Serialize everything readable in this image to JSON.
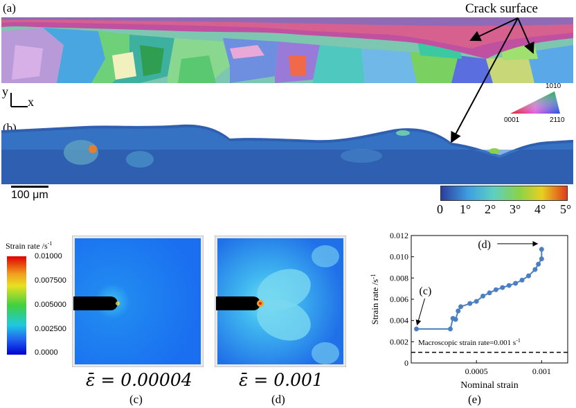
{
  "figure": {
    "labels": {
      "a": "(a)",
      "b": "(b)",
      "c": "(c)",
      "d": "(d)",
      "e": "(e)"
    },
    "crack_surface": "Crack surface",
    "axes": {
      "y": "y",
      "x": "x"
    },
    "scale_bar": "100 μm",
    "ipf_key": {
      "top": "1010",
      "left": "0001",
      "right": "2110"
    },
    "misorientation_colorbar": {
      "ticks": [
        "0",
        "1°",
        "2°",
        "3°",
        "4°",
        "5°"
      ],
      "colors": [
        "#2c3e9e",
        "#3fa0e0",
        "#5ed0c0",
        "#8ad24a",
        "#e8d020",
        "#e03c1c"
      ]
    },
    "strain_rate_legend": {
      "title": "Strain rate /s",
      "title_sup": "-1",
      "ticks": [
        "0.01000",
        "0.007500",
        "0.005000",
        "0.002500",
        "0.0000"
      ]
    },
    "sim_captions": {
      "c_eps": "ε̄ = 0.00004",
      "d_eps": "ε̄ = 0.001"
    }
  },
  "chart_data": {
    "type": "line",
    "xlabel": "Nominal strain",
    "ylabel": "Strain rate /s",
    "ylabel_sup": "-1",
    "xlim": [
      0,
      0.0012
    ],
    "ylim": [
      0,
      0.012
    ],
    "xticks": [
      "0.0005",
      "0.001"
    ],
    "xtick_values": [
      0.0005,
      0.001
    ],
    "yticks": [
      "0",
      "0.002",
      "0.004",
      "0.006",
      "0.008",
      "0.010",
      "0.012"
    ],
    "ytick_values": [
      0,
      0.002,
      0.004,
      0.006,
      0.008,
      0.01,
      0.012
    ],
    "series": [
      {
        "color": "#4a7fc0",
        "x": [
          4e-05,
          0.0003,
          0.00032,
          0.00034,
          0.00036,
          0.00038,
          0.00045,
          0.0005,
          0.00055,
          0.0006,
          0.00065,
          0.0007,
          0.00075,
          0.0008,
          0.00085,
          0.0009,
          0.00095,
          0.000975,
          0.001,
          0.001
        ],
        "y": [
          0.0032,
          0.0032,
          0.0042,
          0.0041,
          0.0049,
          0.0053,
          0.0056,
          0.0058,
          0.0063,
          0.0066,
          0.0069,
          0.0071,
          0.0073,
          0.0075,
          0.0078,
          0.0082,
          0.0088,
          0.0093,
          0.0098,
          0.0107
        ]
      }
    ],
    "reference_line": {
      "y": 0.001,
      "label": "Macroscopic strain rate=0.001 s",
      "label_sup": "-1"
    },
    "annotations": [
      {
        "text": "(c)",
        "x": 4e-05,
        "y": 0.0032
      },
      {
        "text": "(d)",
        "x": 0.001,
        "y": 0.0107
      }
    ]
  }
}
